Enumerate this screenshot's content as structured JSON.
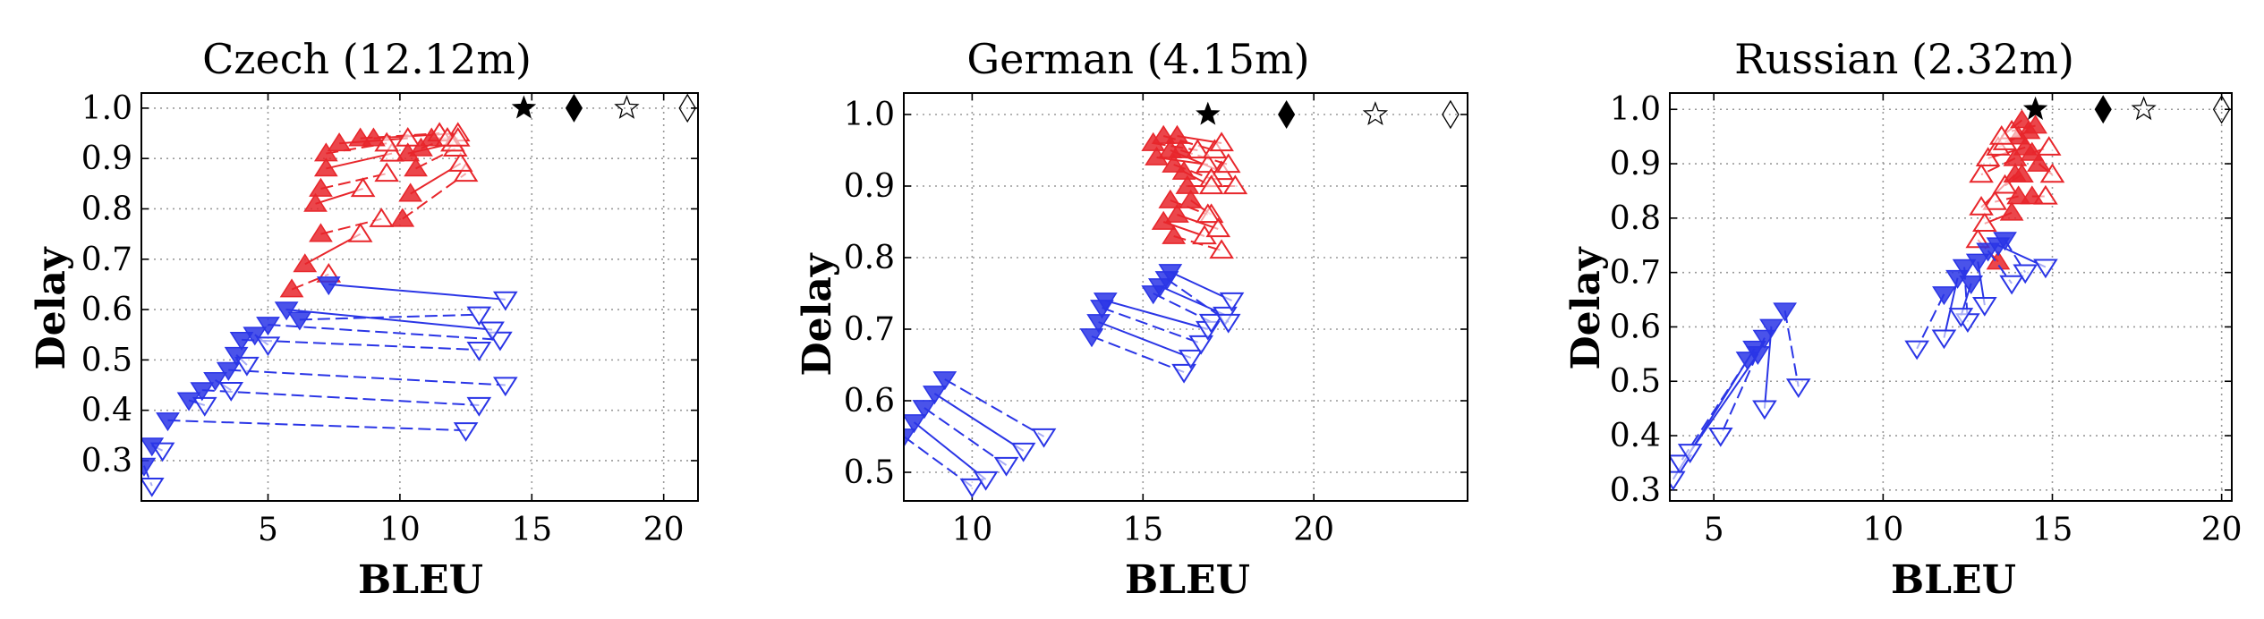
{
  "figure": {
    "colors": {
      "red": "#e8262b",
      "blue": "#2a35e6",
      "black": "#000000",
      "grid": "#9a9a9a"
    },
    "panels": [
      {
        "title": "Czech (12.12m)",
        "xlabel": "BLEU",
        "ylabel": "Delay"
      },
      {
        "title": "German (4.15m)",
        "xlabel": "BLEU",
        "ylabel": "Delay"
      },
      {
        "title": "Russian (2.32m)",
        "xlabel": "BLEU",
        "ylabel": "Delay"
      }
    ]
  },
  "chart_data": [
    {
      "type": "scatter",
      "title": "Czech (12.12m)",
      "xlabel": "BLEU",
      "ylabel": "Delay",
      "xlim": [
        0.2,
        21.3
      ],
      "ylim": [
        0.22,
        1.03
      ],
      "xticks": [
        5,
        10,
        15,
        20
      ],
      "yticks": [
        0.3,
        0.4,
        0.5,
        0.6,
        0.7,
        0.8,
        0.9,
        1.0
      ],
      "grid": true,
      "series": [
        {
          "color": "red",
          "marker": "triangle-up",
          "pairs": [
            [
              5.9,
              0.64,
              7.3,
              0.67
            ],
            [
              6.4,
              0.69,
              8.5,
              0.75
            ],
            [
              7.0,
              0.75,
              9.3,
              0.78
            ],
            [
              6.8,
              0.81,
              8.6,
              0.84
            ],
            [
              7.0,
              0.84,
              9.5,
              0.87
            ],
            [
              7.2,
              0.88,
              9.7,
              0.91
            ],
            [
              7.2,
              0.91,
              9.5,
              0.93
            ],
            [
              7.7,
              0.93,
              10.3,
              0.94
            ],
            [
              8.5,
              0.94,
              11.5,
              0.95
            ],
            [
              9.0,
              0.94,
              12.2,
              0.95
            ],
            [
              10.1,
              0.78,
              12.5,
              0.87
            ],
            [
              10.4,
              0.83,
              12.3,
              0.89
            ],
            [
              10.6,
              0.88,
              12.1,
              0.92
            ],
            [
              10.3,
              0.91,
              12.0,
              0.93
            ],
            [
              10.8,
              0.92,
              11.8,
              0.94
            ],
            [
              11.2,
              0.94,
              12.2,
              0.94
            ]
          ]
        },
        {
          "color": "blue",
          "marker": "triangle-down",
          "pairs": [
            [
              0.3,
              0.29,
              0.6,
              0.25
            ],
            [
              0.6,
              0.33,
              1.0,
              0.32
            ],
            [
              1.2,
              0.38,
              12.5,
              0.36
            ],
            [
              2.0,
              0.42,
              2.6,
              0.41
            ],
            [
              2.5,
              0.44,
              13.0,
              0.41
            ],
            [
              3.0,
              0.46,
              3.6,
              0.44
            ],
            [
              3.5,
              0.48,
              14.0,
              0.45
            ],
            [
              3.8,
              0.51,
              4.2,
              0.49
            ],
            [
              4.0,
              0.54,
              13.0,
              0.52
            ],
            [
              4.5,
              0.55,
              5.0,
              0.53
            ],
            [
              5.0,
              0.57,
              13.8,
              0.54
            ],
            [
              5.7,
              0.6,
              13.5,
              0.56
            ],
            [
              6.2,
              0.58,
              13.0,
              0.59
            ],
            [
              7.3,
              0.65,
              14.0,
              0.62
            ]
          ]
        }
      ],
      "reference_points": [
        {
          "symbol": "filled-star",
          "x": 14.7,
          "y": 1.0
        },
        {
          "symbol": "filled-diamond",
          "x": 16.6,
          "y": 1.0
        },
        {
          "symbol": "open-star",
          "x": 18.6,
          "y": 1.0
        },
        {
          "symbol": "open-diamond",
          "x": 20.9,
          "y": 1.0
        }
      ]
    },
    {
      "type": "scatter",
      "title": "German (4.15m)",
      "xlabel": "BLEU",
      "ylabel": "Delay",
      "xlim": [
        8.0,
        24.5
      ],
      "ylim": [
        0.46,
        1.03
      ],
      "xticks": [
        10,
        15,
        20
      ],
      "yticks": [
        0.5,
        0.6,
        0.7,
        0.8,
        0.9,
        1.0
      ],
      "grid": true,
      "series": [
        {
          "color": "red",
          "marker": "triangle-up",
          "pairs": [
            [
              15.3,
              0.96,
              16.6,
              0.95
            ],
            [
              15.4,
              0.94,
              16.9,
              0.93
            ],
            [
              15.6,
              0.97,
              17.1,
              0.95
            ],
            [
              15.8,
              0.95,
              17.3,
              0.92
            ],
            [
              15.9,
              0.93,
              17.0,
              0.91
            ],
            [
              16.0,
              0.97,
              17.3,
              0.96
            ],
            [
              16.1,
              0.95,
              17.5,
              0.93
            ],
            [
              16.2,
              0.92,
              17.0,
              0.9
            ],
            [
              16.3,
              0.9,
              17.7,
              0.9
            ],
            [
              16.4,
              0.88,
              17.0,
              0.86
            ],
            [
              15.8,
              0.88,
              16.9,
              0.86
            ],
            [
              15.6,
              0.85,
              16.8,
              0.83
            ],
            [
              15.9,
              0.83,
              17.3,
              0.81
            ],
            [
              16.0,
              0.86,
              17.2,
              0.84
            ]
          ]
        },
        {
          "color": "blue",
          "marker": "triangle-down",
          "pairs": [
            [
              13.5,
              0.69,
              16.2,
              0.64
            ],
            [
              13.7,
              0.71,
              16.4,
              0.66
            ],
            [
              13.8,
              0.73,
              16.7,
              0.68
            ],
            [
              13.9,
              0.74,
              16.9,
              0.7
            ],
            [
              15.3,
              0.75,
              17.0,
              0.71
            ],
            [
              15.5,
              0.76,
              17.4,
              0.72
            ],
            [
              15.7,
              0.77,
              17.5,
              0.71
            ],
            [
              15.8,
              0.78,
              17.6,
              0.74
            ],
            [
              8.0,
              0.55,
              10.0,
              0.48
            ],
            [
              8.3,
              0.57,
              10.4,
              0.49
            ],
            [
              8.6,
              0.59,
              11.0,
              0.51
            ],
            [
              8.9,
              0.61,
              11.5,
              0.53
            ],
            [
              9.2,
              0.63,
              12.1,
              0.55
            ]
          ]
        }
      ],
      "reference_points": [
        {
          "symbol": "filled-star",
          "x": 16.9,
          "y": 1.0
        },
        {
          "symbol": "filled-diamond",
          "x": 19.2,
          "y": 1.0
        },
        {
          "symbol": "open-star",
          "x": 21.8,
          "y": 1.0
        },
        {
          "symbol": "open-diamond",
          "x": 24.0,
          "y": 1.0
        }
      ]
    },
    {
      "type": "scatter",
      "title": "Russian (2.32m)",
      "xlabel": "BLEU",
      "ylabel": "Delay",
      "xlim": [
        3.7,
        20.3
      ],
      "ylim": [
        0.28,
        1.03
      ],
      "xticks": [
        5,
        10,
        15,
        20
      ],
      "yticks": [
        0.3,
        0.4,
        0.5,
        0.6,
        0.7,
        0.8,
        0.9,
        1.0
      ],
      "grid": true,
      "series": [
        {
          "color": "red",
          "marker": "triangle-up",
          "pairs": [
            [
              13.4,
              0.72,
              12.8,
              0.76
            ],
            [
              13.8,
              0.81,
              13.0,
              0.79
            ],
            [
              14.0,
              0.84,
              13.3,
              0.83
            ],
            [
              14.1,
              0.88,
              13.6,
              0.86
            ],
            [
              13.9,
              0.91,
              12.9,
              0.88
            ],
            [
              14.2,
              0.93,
              13.1,
              0.91
            ],
            [
              14.0,
              0.95,
              13.4,
              0.93
            ],
            [
              14.3,
              0.96,
              13.6,
              0.94
            ],
            [
              14.5,
              0.97,
              13.8,
              0.96
            ],
            [
              14.6,
              0.9,
              15.0,
              0.88
            ],
            [
              14.4,
              0.92,
              14.9,
              0.93
            ],
            [
              14.1,
              0.98,
              13.5,
              0.95
            ],
            [
              14.4,
              0.84,
              14.8,
              0.84
            ],
            [
              13.9,
              0.88,
              12.9,
              0.82
            ]
          ]
        },
        {
          "color": "blue",
          "marker": "triangle-down",
          "pairs": [
            [
              11.8,
              0.66,
              11.0,
              0.56
            ],
            [
              12.2,
              0.69,
              11.8,
              0.58
            ],
            [
              12.4,
              0.71,
              12.5,
              0.61
            ],
            [
              12.8,
              0.72,
              13.0,
              0.64
            ],
            [
              13.1,
              0.74,
              13.8,
              0.68
            ],
            [
              13.4,
              0.75,
              14.8,
              0.71
            ],
            [
              13.6,
              0.76,
              14.2,
              0.7
            ],
            [
              12.6,
              0.68,
              12.3,
              0.62
            ],
            [
              6.0,
              0.54,
              4.0,
              0.35
            ],
            [
              6.2,
              0.56,
              3.8,
              0.32
            ],
            [
              6.5,
              0.58,
              5.2,
              0.4
            ],
            [
              6.7,
              0.6,
              6.5,
              0.45
            ],
            [
              7.1,
              0.63,
              7.5,
              0.49
            ],
            [
              6.3,
              0.55,
              4.3,
              0.37
            ]
          ]
        }
      ],
      "reference_points": [
        {
          "symbol": "filled-star",
          "x": 14.5,
          "y": 1.0
        },
        {
          "symbol": "filled-diamond",
          "x": 16.5,
          "y": 1.0
        },
        {
          "symbol": "open-star",
          "x": 17.7,
          "y": 1.0
        },
        {
          "symbol": "open-diamond",
          "x": 20.0,
          "y": 1.0
        }
      ]
    }
  ]
}
